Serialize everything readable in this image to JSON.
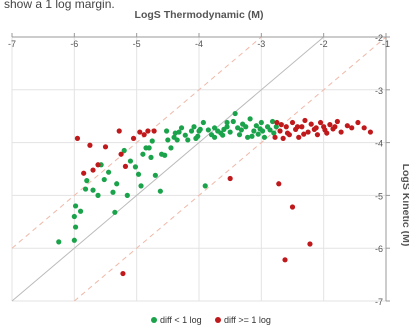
{
  "clipped_text": "show a 1 log margin.",
  "chart_data": {
    "type": "scatter",
    "title": "LogS Thermodynamic (M)",
    "xlabel": "LogS Thermodynamic (M)",
    "ylabel": "LogS Kinetic (M)",
    "xlim": [
      -7,
      -1
    ],
    "ylim": [
      -7,
      -2
    ],
    "x_ticks": [
      "-7",
      "-6",
      "-5",
      "-4",
      "-3",
      "-2",
      "-1"
    ],
    "y_ticks": [
      "-2",
      "-3",
      "-4",
      "-5",
      "-6",
      "-7"
    ],
    "x_axis_position": "top",
    "y_axis_position": "right",
    "grid": true,
    "legend_position": "bottom",
    "reference_lines": [
      {
        "name": "identity",
        "offset": 0,
        "color": "#bbbbbb",
        "style": "solid"
      },
      {
        "name": "+1 log",
        "offset": 1,
        "color": "#f0b8a8",
        "style": "dashed"
      },
      {
        "name": "-1 log",
        "offset": -1,
        "color": "#f0b8a8",
        "style": "dashed"
      }
    ],
    "series": [
      {
        "name": "diff < 1 log",
        "color": "#1aa34a",
        "points": [
          [
            -6.25,
            -5.88
          ],
          [
            -6.0,
            -5.85
          ],
          [
            -5.98,
            -5.6
          ],
          [
            -6.0,
            -5.4
          ],
          [
            -5.98,
            -5.2
          ],
          [
            -5.9,
            -5.3
          ],
          [
            -5.82,
            -4.88
          ],
          [
            -5.8,
            -4.72
          ],
          [
            -5.7,
            -4.9
          ],
          [
            -5.62,
            -5.0
          ],
          [
            -5.57,
            -4.42
          ],
          [
            -5.52,
            -4.7
          ],
          [
            -5.45,
            -4.56
          ],
          [
            -5.38,
            -4.94
          ],
          [
            -5.35,
            -5.32
          ],
          [
            -5.32,
            -4.78
          ],
          [
            -5.2,
            -4.15
          ],
          [
            -5.15,
            -5.0
          ],
          [
            -5.1,
            -4.35
          ],
          [
            -5.02,
            -4.46
          ],
          [
            -4.97,
            -4.6
          ],
          [
            -4.93,
            -4.82
          ],
          [
            -4.9,
            -4.22
          ],
          [
            -4.85,
            -4.1
          ],
          [
            -4.8,
            -4.1
          ],
          [
            -4.77,
            -4.28
          ],
          [
            -4.75,
            -3.97
          ],
          [
            -4.7,
            -4.62
          ],
          [
            -4.62,
            -4.92
          ],
          [
            -4.6,
            -4.22
          ],
          [
            -4.55,
            -4.24
          ],
          [
            -4.5,
            -3.95
          ],
          [
            -4.45,
            -4.1
          ],
          [
            -4.4,
            -3.9
          ],
          [
            -4.38,
            -3.82
          ],
          [
            -4.32,
            -3.8
          ],
          [
            -4.28,
            -3.72
          ],
          [
            -4.22,
            -3.86
          ],
          [
            -4.18,
            -3.95
          ],
          [
            -4.12,
            -3.78
          ],
          [
            -4.08,
            -3.7
          ],
          [
            -4.02,
            -3.88
          ],
          [
            -3.98,
            -3.75
          ],
          [
            -3.93,
            -3.62
          ],
          [
            -3.9,
            -4.82
          ],
          [
            -3.85,
            -3.76
          ],
          [
            -3.8,
            -3.85
          ],
          [
            -3.75,
            -3.72
          ],
          [
            -3.7,
            -3.78
          ],
          [
            -3.65,
            -3.82
          ],
          [
            -3.6,
            -3.75
          ],
          [
            -3.55,
            -3.7
          ],
          [
            -3.5,
            -3.8
          ],
          [
            -3.45,
            -3.6
          ],
          [
            -3.42,
            -3.45
          ],
          [
            -3.38,
            -3.72
          ],
          [
            -3.35,
            -3.85
          ],
          [
            -3.3,
            -3.65
          ],
          [
            -3.25,
            -3.7
          ],
          [
            -3.22,
            -3.9
          ],
          [
            -3.18,
            -3.55
          ],
          [
            -3.12,
            -3.78
          ],
          [
            -3.08,
            -3.68
          ],
          [
            -3.05,
            -3.84
          ],
          [
            -3.0,
            -3.62
          ],
          [
            -2.98,
            -3.78
          ],
          [
            -2.95,
            -3.9
          ],
          [
            -2.9,
            -3.7
          ],
          [
            -2.86,
            -3.76
          ],
          [
            -2.82,
            -3.6
          ],
          [
            -2.8,
            -3.82
          ],
          [
            -2.76,
            -3.7
          ],
          [
            -4.35,
            -3.95
          ],
          [
            -4.05,
            -3.92
          ],
          [
            -3.75,
            -3.9
          ],
          [
            -3.55,
            -3.62
          ],
          [
            -3.15,
            -3.88
          ],
          [
            -4.52,
            -3.78
          ],
          [
            -4.0,
            -3.78
          ],
          [
            -3.62,
            -3.86
          ],
          [
            -3.32,
            -3.76
          ],
          [
            -3.02,
            -3.74
          ]
        ]
      },
      {
        "name": "diff >= 1 log",
        "color": "#c0191c",
        "points": [
          [
            -5.95,
            -3.92
          ],
          [
            -5.85,
            -4.58
          ],
          [
            -5.75,
            -4.05
          ],
          [
            -5.7,
            -4.52
          ],
          [
            -5.62,
            -4.42
          ],
          [
            -5.5,
            -4.08
          ],
          [
            -5.28,
            -3.78
          ],
          [
            -5.25,
            -4.22
          ],
          [
            -5.18,
            -4.45
          ],
          [
            -5.05,
            -3.92
          ],
          [
            -4.95,
            -3.8
          ],
          [
            -4.88,
            -3.85
          ],
          [
            -4.82,
            -3.78
          ],
          [
            -4.72,
            -3.78
          ],
          [
            -5.22,
            -6.48
          ],
          [
            -3.5,
            -4.68
          ],
          [
            -2.72,
            -4.78
          ],
          [
            -2.5,
            -5.22
          ],
          [
            -2.62,
            -6.22
          ],
          [
            -2.22,
            -5.92
          ],
          [
            -2.75,
            -3.62
          ],
          [
            -2.7,
            -3.78
          ],
          [
            -2.65,
            -3.92
          ],
          [
            -2.6,
            -3.7
          ],
          [
            -2.55,
            -3.85
          ],
          [
            -2.5,
            -3.62
          ],
          [
            -2.45,
            -3.75
          ],
          [
            -2.4,
            -3.9
          ],
          [
            -2.35,
            -3.7
          ],
          [
            -2.3,
            -3.58
          ],
          [
            -2.25,
            -3.8
          ],
          [
            -2.2,
            -3.65
          ],
          [
            -2.15,
            -3.75
          ],
          [
            -2.1,
            -3.85
          ],
          [
            -2.05,
            -3.62
          ],
          [
            -2.0,
            -3.7
          ],
          [
            -1.95,
            -3.82
          ],
          [
            -1.9,
            -3.66
          ],
          [
            -1.85,
            -3.74
          ],
          [
            -1.78,
            -3.6
          ],
          [
            -1.72,
            -3.8
          ],
          [
            -1.62,
            -3.68
          ],
          [
            -1.55,
            -3.72
          ],
          [
            -1.45,
            -3.62
          ],
          [
            -1.35,
            -3.72
          ],
          [
            -1.25,
            -3.8
          ],
          [
            -2.78,
            -3.9
          ],
          [
            -2.68,
            -3.66
          ],
          [
            -2.58,
            -3.82
          ],
          [
            -2.42,
            -3.7
          ],
          [
            -2.32,
            -3.84
          ],
          [
            -2.12,
            -3.72
          ],
          [
            -1.98,
            -3.76
          ],
          [
            -1.82,
            -3.7
          ]
        ]
      }
    ]
  }
}
